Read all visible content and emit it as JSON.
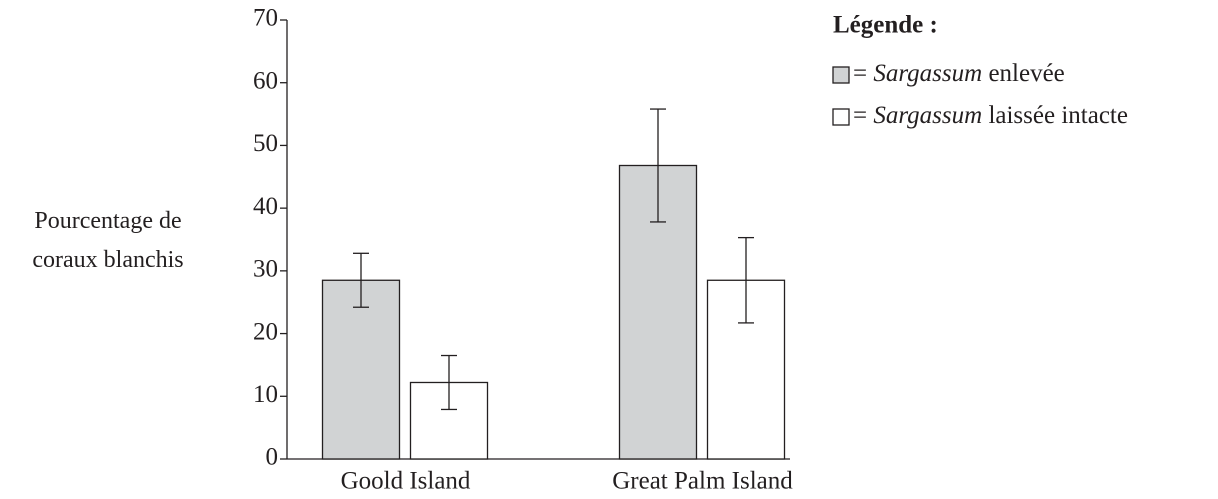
{
  "chart_data": {
    "type": "bar",
    "ylabel": "Pourcentage de coraux blanchis",
    "legend_title": "Légende :",
    "categories": [
      "Goold Island",
      "Great Palm Island"
    ],
    "series": [
      {
        "name": "= Sargassum enlevée",
        "color": "#d1d3d4",
        "values": [
          28.5,
          46.8
        ],
        "errors": [
          4.3,
          9.0
        ]
      },
      {
        "name": "= Sargassum laissée intacte",
        "color": "#ffffff",
        "values": [
          12.2,
          28.5
        ],
        "errors": [
          4.3,
          6.8
        ]
      }
    ],
    "ylim": [
      0,
      70
    ],
    "yticks": [
      0,
      10,
      20,
      30,
      40,
      50,
      60,
      70
    ],
    "legend": "upper right"
  }
}
